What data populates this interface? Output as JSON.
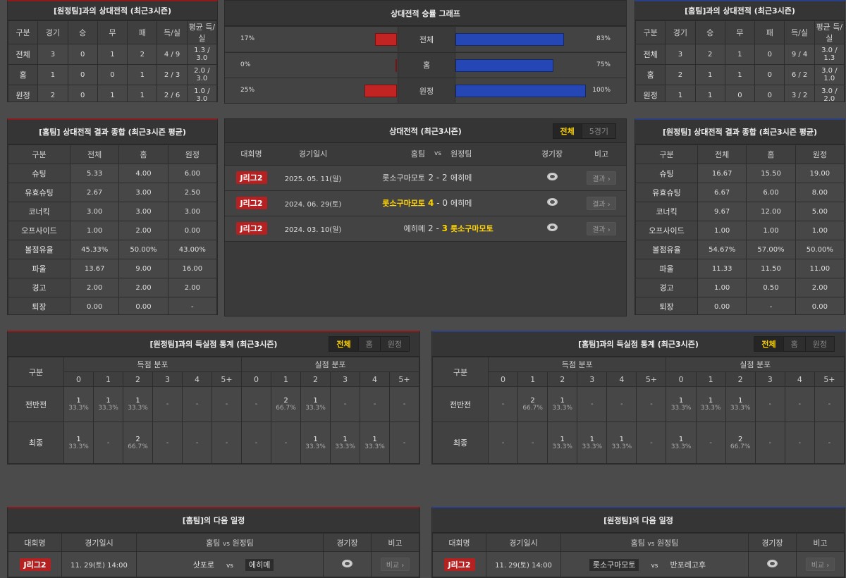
{
  "h2h_away": {
    "title": "[원정팀]과의 상대전적 (최근3시즌)",
    "headers": [
      "구분",
      "경기",
      "승",
      "무",
      "패",
      "득/실",
      "평균 득/실"
    ],
    "rows": [
      [
        "전체",
        "3",
        "0",
        "1",
        "2",
        "4 / 9",
        "1.3 / 3.0"
      ],
      [
        "홈",
        "1",
        "0",
        "0",
        "1",
        "2 / 3",
        "2.0 / 3.0"
      ],
      [
        "원정",
        "2",
        "0",
        "1",
        "1",
        "2 / 6",
        "1.0 / 3.0"
      ]
    ]
  },
  "graph": {
    "title": "상대전적 승률 그래프",
    "colors": {
      "away": "#c22424",
      "home": "#2547b5"
    },
    "rows": [
      {
        "label": "전체",
        "left": "17%",
        "right": "83%"
      },
      {
        "label": "홈",
        "left": "0%",
        "right": "75%"
      },
      {
        "label": "원정",
        "left": "25%",
        "right": "100%"
      }
    ]
  },
  "h2h_home": {
    "title": "[홈팀]과의 상대전적 (최근3시즌)",
    "headers": [
      "구분",
      "경기",
      "승",
      "무",
      "패",
      "득/실",
      "평균 득/실"
    ],
    "rows": [
      [
        "전체",
        "3",
        "2",
        "1",
        "0",
        "9 / 4",
        "3.0 / 1.3"
      ],
      [
        "홈",
        "2",
        "1",
        "1",
        "0",
        "6 / 2",
        "3.0 / 1.0"
      ],
      [
        "원정",
        "1",
        "1",
        "0",
        "0",
        "3 / 2",
        "3.0 / 2.0"
      ]
    ]
  },
  "summary_home": {
    "title": "[홈팀] 상대전적 결과 종합 (최근3시즌 평균)",
    "headers": [
      "구분",
      "전체",
      "홈",
      "원정"
    ],
    "rows": [
      [
        "슈팅",
        "5.33",
        "4.00",
        "6.00"
      ],
      [
        "유효슈팅",
        "2.67",
        "3.00",
        "2.50"
      ],
      [
        "코너킥",
        "3.00",
        "3.00",
        "3.00"
      ],
      [
        "오프사이드",
        "1.00",
        "2.00",
        "0.00"
      ],
      [
        "볼점유율",
        "45.33%",
        "50.00%",
        "43.00%"
      ],
      [
        "파울",
        "13.67",
        "9.00",
        "16.00"
      ],
      [
        "경고",
        "2.00",
        "2.00",
        "2.00"
      ],
      [
        "퇴장",
        "0.00",
        "0.00",
        "-"
      ]
    ]
  },
  "summary_away": {
    "title": "[원정팀] 상대전적 결과 종합 (최근3시즌 평균)",
    "headers": [
      "구분",
      "전체",
      "홈",
      "원정"
    ],
    "rows": [
      [
        "슈팅",
        "16.67",
        "15.50",
        "19.00"
      ],
      [
        "유효슈팅",
        "6.67",
        "6.00",
        "8.00"
      ],
      [
        "코너킥",
        "9.67",
        "12.00",
        "5.00"
      ],
      [
        "오프사이드",
        "1.00",
        "1.00",
        "1.00"
      ],
      [
        "볼점유율",
        "54.67%",
        "57.00%",
        "50.00%"
      ],
      [
        "파울",
        "11.33",
        "11.50",
        "11.00"
      ],
      [
        "경고",
        "1.00",
        "0.50",
        "2.00"
      ],
      [
        "퇴장",
        "0.00",
        "-",
        "0.00"
      ]
    ]
  },
  "results": {
    "title": "상대전적 (최근3시즌)",
    "tabs": [
      "전체",
      "5경기"
    ],
    "headers": [
      "대회명",
      "경기일시",
      "홈팀",
      "vs",
      "원정팀",
      "경기장",
      "비고"
    ],
    "matches": [
      {
        "league": "J리그2",
        "date": "2025. 05. 11(일)",
        "home": "롯소구마모토",
        "sh": "2",
        "sa": "2",
        "away": "에히메",
        "winner": "draw",
        "button": "결과"
      },
      {
        "league": "J리그2",
        "date": "2024. 06. 29(토)",
        "home": "롯소구마모토",
        "sh": "4",
        "sa": "0",
        "away": "에히메",
        "winner": "home",
        "button": "결과"
      },
      {
        "league": "J리그2",
        "date": "2024. 03. 10(일)",
        "home": "에히메",
        "sh": "2",
        "sa": "3",
        "away": "롯소구마모토",
        "winner": "away",
        "button": "결과"
      }
    ]
  },
  "goals_away": {
    "title": "[원정팀]과의 득실점 통계 (최근3시즌)",
    "tabs": [
      "전체",
      "홈",
      "원정"
    ],
    "label_header": "구분",
    "groups": [
      "득점 분포",
      "실점 분포"
    ],
    "buckets": [
      "0",
      "1",
      "2",
      "3",
      "4",
      "5+"
    ],
    "rows": [
      {
        "label": "전반전",
        "cells": [
          [
            "1",
            "33.3%"
          ],
          [
            "1",
            "33.3%"
          ],
          [
            "1",
            "33.3%"
          ],
          [
            "-"
          ],
          [
            "-"
          ],
          [
            "-"
          ],
          [
            "-"
          ],
          [
            "2",
            "66.7%"
          ],
          [
            "1",
            "33.3%"
          ],
          [
            "-"
          ],
          [
            "-"
          ],
          [
            "-"
          ]
        ]
      },
      {
        "label": "최종",
        "cells": [
          [
            "1",
            "33.3%"
          ],
          [
            "-"
          ],
          [
            "2",
            "66.7%"
          ],
          [
            "-"
          ],
          [
            "-"
          ],
          [
            "-"
          ],
          [
            "-"
          ],
          [
            "-"
          ],
          [
            "1",
            "33.3%"
          ],
          [
            "1",
            "33.3%"
          ],
          [
            "1",
            "33.3%"
          ],
          [
            "-"
          ]
        ]
      }
    ]
  },
  "goals_home": {
    "title": "[홈팀]과의 득실점 통계 (최근3시즌)",
    "tabs": [
      "전체",
      "홈",
      "원정"
    ],
    "label_header": "구분",
    "groups": [
      "득점 분포",
      "실점 분포"
    ],
    "buckets": [
      "0",
      "1",
      "2",
      "3",
      "4",
      "5+"
    ],
    "rows": [
      {
        "label": "전반전",
        "cells": [
          [
            "-"
          ],
          [
            "2",
            "66.7%"
          ],
          [
            "1",
            "33.3%"
          ],
          [
            "-"
          ],
          [
            "-"
          ],
          [
            "-"
          ],
          [
            "1",
            "33.3%"
          ],
          [
            "1",
            "33.3%"
          ],
          [
            "1",
            "33.3%"
          ],
          [
            "-"
          ],
          [
            "-"
          ],
          [
            "-"
          ]
        ]
      },
      {
        "label": "최종",
        "cells": [
          [
            "-"
          ],
          [
            "-"
          ],
          [
            "1",
            "33.3%"
          ],
          [
            "1",
            "33.3%"
          ],
          [
            "1",
            "33.3%"
          ],
          [
            "-"
          ],
          [
            "1",
            "33.3%"
          ],
          [
            "-"
          ],
          [
            "2",
            "66.7%"
          ],
          [
            "-"
          ],
          [
            "-"
          ],
          [
            "-"
          ]
        ]
      }
    ]
  },
  "next_home": {
    "title": "[홈팀]의 다음 일정",
    "headers": [
      "대회명",
      "경기일시",
      "홈팀",
      "vs",
      "원정팀",
      "경기장",
      "비고"
    ],
    "match": {
      "league": "J리그2",
      "datetime": "11. 29(토) 14:00",
      "home": "삿포로",
      "vs": "vs",
      "away": "에히메",
      "highlight": "away",
      "button": "비교"
    }
  },
  "next_away": {
    "title": "[원정팀]의 다음 일정",
    "headers": [
      "대회명",
      "경기일시",
      "홈팀",
      "vs",
      "원정팀",
      "경기장",
      "비고"
    ],
    "match": {
      "league": "J리그2",
      "datetime": "11. 29(토) 14:00",
      "home": "롯소구마모토",
      "vs": "vs",
      "away": "반포레고후",
      "highlight": "home",
      "button": "비교"
    }
  }
}
